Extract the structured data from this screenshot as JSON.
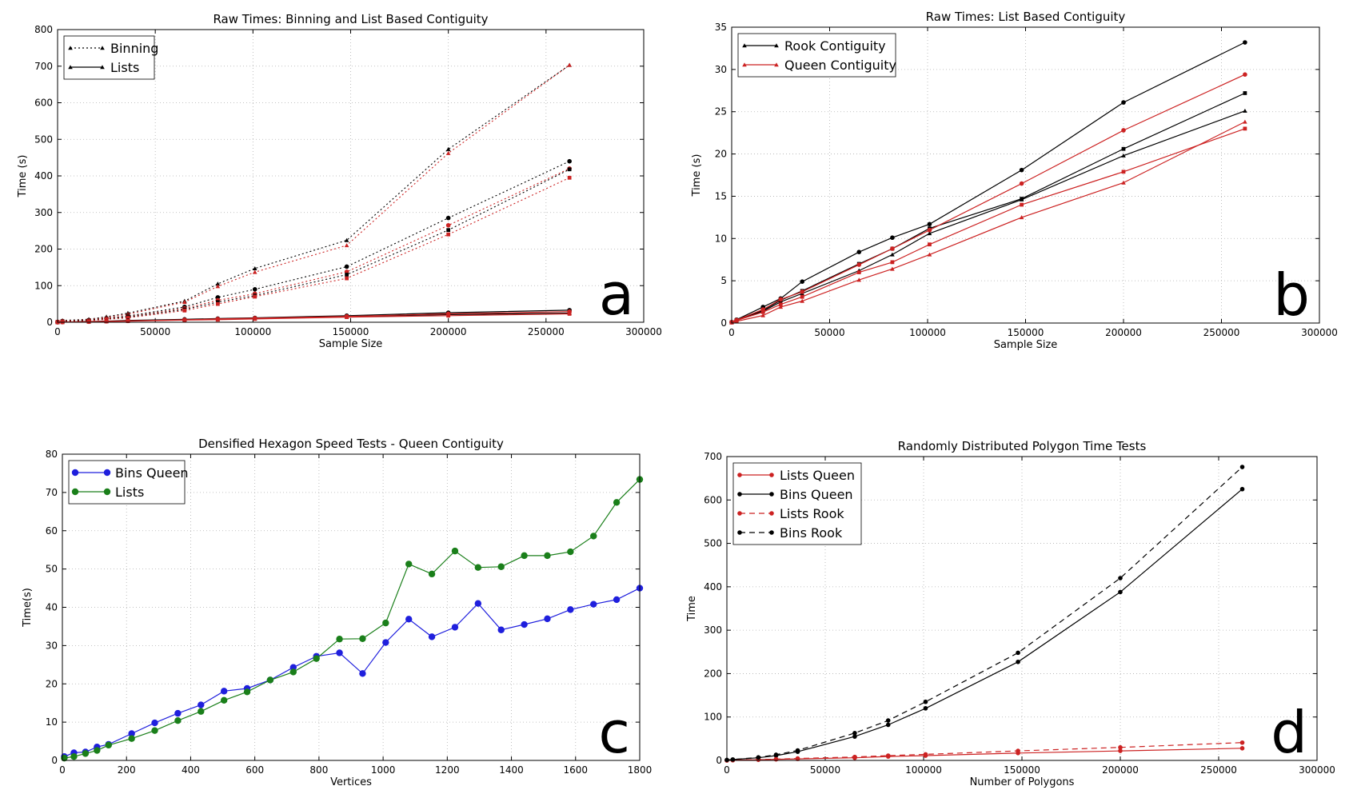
{
  "chart_data": [
    {
      "id": "a",
      "type": "line",
      "title": "Raw Times: Binning and List Based Contiguity",
      "xlabel": "Sample Size",
      "ylabel": "Time (s)",
      "xlim": [
        0,
        300000
      ],
      "ylim": [
        0,
        800
      ],
      "xticks": [
        0,
        50000,
        100000,
        150000,
        200000,
        250000,
        300000
      ],
      "yticks": [
        0,
        100,
        200,
        300,
        400,
        500,
        600,
        700,
        800
      ],
      "grid": true,
      "panel_letter": "a",
      "legend": [
        {
          "label": "Binning",
          "color": "#000000",
          "dash": "dot",
          "marker": "triangle"
        },
        {
          "label": "Lists",
          "color": "#000000",
          "dash": "solid",
          "marker": "triangle"
        }
      ],
      "x": [
        0,
        2500,
        16000,
        25000,
        36000,
        65000,
        82000,
        101000,
        148000,
        200000,
        262000
      ],
      "series": [
        {
          "color": "#000000",
          "dash": "dot",
          "marker": "triangle",
          "values": [
            2,
            5,
            8,
            15,
            25,
            58,
            105,
            147,
            224,
            473,
            703
          ]
        },
        {
          "color": "#cc2222",
          "dash": "dot",
          "marker": "triangle",
          "values": [
            2,
            4,
            7,
            13,
            22,
            55,
            98,
            137,
            210,
            462,
            703
          ]
        },
        {
          "color": "#000000",
          "dash": "dot",
          "marker": "circle",
          "values": [
            1,
            3,
            6,
            11,
            17,
            42,
            68,
            90,
            152,
            285,
            440
          ]
        },
        {
          "color": "#cc2222",
          "dash": "dot",
          "marker": "circle",
          "values": [
            1,
            3,
            5,
            10,
            15,
            38,
            60,
            78,
            138,
            265,
            420
          ]
        },
        {
          "color": "#000000",
          "dash": "dot",
          "marker": "square",
          "values": [
            1,
            3,
            5,
            9,
            14,
            35,
            55,
            73,
            130,
            252,
            418
          ]
        },
        {
          "color": "#cc2222",
          "dash": "dot",
          "marker": "square",
          "values": [
            1,
            2,
            4,
            8,
            12,
            32,
            50,
            70,
            120,
            240,
            395
          ]
        },
        {
          "color": "#000000",
          "dash": "solid",
          "marker": "circle",
          "values": [
            0,
            0.4,
            2,
            3,
            5,
            8,
            10,
            12,
            18,
            26,
            33
          ]
        },
        {
          "color": "#000000",
          "dash": "solid",
          "marker": "triangle",
          "values": [
            0,
            0.3,
            1.5,
            2.5,
            4,
            7,
            8,
            10,
            15,
            21,
            25
          ]
        },
        {
          "color": "#cc2222",
          "dash": "solid",
          "marker": "circle",
          "values": [
            0,
            0.3,
            1.4,
            2.6,
            3.7,
            6.5,
            9,
            11,
            16,
            23,
            29
          ]
        },
        {
          "color": "#cc2222",
          "dash": "solid",
          "marker": "square",
          "values": [
            0,
            0.3,
            1.2,
            2.2,
            3.1,
            6,
            7,
            9,
            14,
            18,
            23
          ]
        }
      ]
    },
    {
      "id": "b",
      "type": "line",
      "title": "Raw Times: List Based Contiguity",
      "xlabel": "Sample Size",
      "ylabel": "Time (s)",
      "xlim": [
        0,
        300000
      ],
      "ylim": [
        0,
        35
      ],
      "xticks": [
        0,
        50000,
        100000,
        150000,
        200000,
        250000,
        300000
      ],
      "yticks": [
        0,
        5,
        10,
        15,
        20,
        25,
        30,
        35
      ],
      "grid": true,
      "panel_letter": "b",
      "legend": [
        {
          "label": "Rook Contiguity",
          "color": "#000000",
          "dash": "solid",
          "marker": "triangle"
        },
        {
          "label": "Queen Contiguity",
          "color": "#cc2222",
          "dash": "solid",
          "marker": "triangle"
        }
      ],
      "x": [
        0,
        2500,
        16000,
        25000,
        36000,
        65000,
        82000,
        101000,
        148000,
        200000,
        262000
      ],
      "series": [
        {
          "color": "#000000",
          "dash": "solid",
          "marker": "circle",
          "values": [
            0.1,
            0.4,
            1.9,
            2.9,
            4.9,
            8.4,
            10.1,
            11.7,
            18.1,
            26.1,
            33.2
          ]
        },
        {
          "color": "#000000",
          "dash": "solid",
          "marker": "square",
          "values": [
            0.1,
            0.35,
            1.5,
            2.7,
            3.8,
            7.0,
            8.8,
            11.2,
            14.7,
            20.6,
            27.2
          ]
        },
        {
          "color": "#000000",
          "dash": "solid",
          "marker": "triangle",
          "values": [
            0.1,
            0.3,
            1.4,
            2.5,
            3.5,
            6.2,
            8.1,
            10.6,
            14.6,
            19.8,
            25.1
          ]
        },
        {
          "color": "#cc2222",
          "dash": "solid",
          "marker": "circle",
          "values": [
            0.1,
            0.35,
            1.6,
            2.8,
            3.7,
            6.9,
            8.8,
            11.0,
            16.5,
            22.8,
            29.4
          ]
        },
        {
          "color": "#cc2222",
          "dash": "solid",
          "marker": "square",
          "values": [
            0.1,
            0.3,
            1.3,
            2.2,
            3.1,
            6.0,
            7.2,
            9.3,
            14.0,
            17.9,
            23.0
          ]
        },
        {
          "color": "#cc2222",
          "dash": "solid",
          "marker": "triangle",
          "values": [
            0.05,
            0.2,
            0.9,
            1.9,
            2.6,
            5.1,
            6.4,
            8.1,
            12.5,
            16.6,
            23.8
          ]
        }
      ]
    },
    {
      "id": "c",
      "type": "line",
      "title": "Densified Hexagon Speed Tests - Queen Contiguity",
      "xlabel": "Vertices",
      "ylabel": "Time(s)",
      "xlim": [
        0,
        1800
      ],
      "ylim": [
        0,
        80
      ],
      "xticks": [
        0,
        200,
        400,
        600,
        800,
        1000,
        1200,
        1400,
        1600,
        1800
      ],
      "yticks": [
        0,
        10,
        20,
        30,
        40,
        50,
        60,
        70,
        80
      ],
      "grid": true,
      "panel_letter": "c",
      "x": [
        6,
        36,
        72,
        108,
        144,
        216,
        288,
        360,
        432,
        504,
        576,
        648,
        720,
        792,
        864,
        936,
        1008,
        1080,
        1152,
        1224,
        1296,
        1368,
        1440,
        1512,
        1584,
        1656,
        1728,
        1800
      ],
      "series": [
        {
          "name": "Bins Queen",
          "color": "#1f1fdd",
          "dash": "solid",
          "marker": "circle",
          "values": [
            1.0,
            2.0,
            2.2,
            3.5,
            4.2,
            7.0,
            9.8,
            12.3,
            14.5,
            18.1,
            18.8,
            21.0,
            24.3,
            27.2,
            28.1,
            22.7,
            30.8,
            36.9,
            32.3,
            34.8,
            41.0,
            34.1,
            35.5,
            37.0,
            39.4,
            40.8,
            42.0,
            45.0
          ]
        },
        {
          "name": "Lists",
          "color": "#1a7f1a",
          "dash": "solid",
          "marker": "circle",
          "values": [
            0.6,
            1.0,
            1.8,
            2.6,
            4.0,
            5.7,
            7.8,
            10.4,
            12.8,
            15.7,
            17.9,
            21.0,
            23.1,
            26.6,
            31.7,
            31.8,
            35.9,
            51.3,
            48.7,
            54.7,
            50.4,
            50.6,
            53.5,
            53.5,
            54.5,
            58.6,
            67.4,
            73.4
          ]
        }
      ]
    },
    {
      "id": "d",
      "type": "line",
      "title": "Randomly Distributed Polygon Time Tests",
      "xlabel": "Number of Polygons",
      "ylabel": "Time",
      "xlim": [
        0,
        300000
      ],
      "ylim": [
        0,
        700
      ],
      "xticks": [
        0,
        50000,
        100000,
        150000,
        200000,
        250000,
        300000
      ],
      "yticks": [
        0,
        100,
        200,
        300,
        400,
        500,
        600,
        700
      ],
      "grid": true,
      "panel_letter": "d",
      "x": [
        0,
        3000,
        16000,
        25000,
        36000,
        65000,
        82000,
        101000,
        148000,
        200000,
        262000
      ],
      "series": [
        {
          "name": "Lists Queen",
          "color": "#cc2222",
          "dash": "solid",
          "marker": "circle",
          "values": [
            0,
            0.5,
            1.5,
            2.5,
            3.5,
            6,
            9,
            11,
            17,
            22,
            28
          ]
        },
        {
          "name": "Bins Queen",
          "color": "#000000",
          "dash": "solid",
          "marker": "circle",
          "values": [
            1,
            2,
            6,
            11,
            20,
            55,
            82,
            120,
            227,
            388,
            625
          ]
        },
        {
          "name": "Lists Rook",
          "color": "#cc2222",
          "dash": "dash",
          "marker": "circle",
          "values": [
            0,
            0.6,
            2,
            3,
            4.5,
            8,
            11,
            14,
            22,
            30,
            41
          ]
        },
        {
          "name": "Bins Rook",
          "color": "#000000",
          "dash": "dash",
          "marker": "circle",
          "values": [
            1,
            2,
            7,
            13,
            23,
            63,
            92,
            135,
            248,
            420,
            676
          ]
        }
      ]
    }
  ]
}
